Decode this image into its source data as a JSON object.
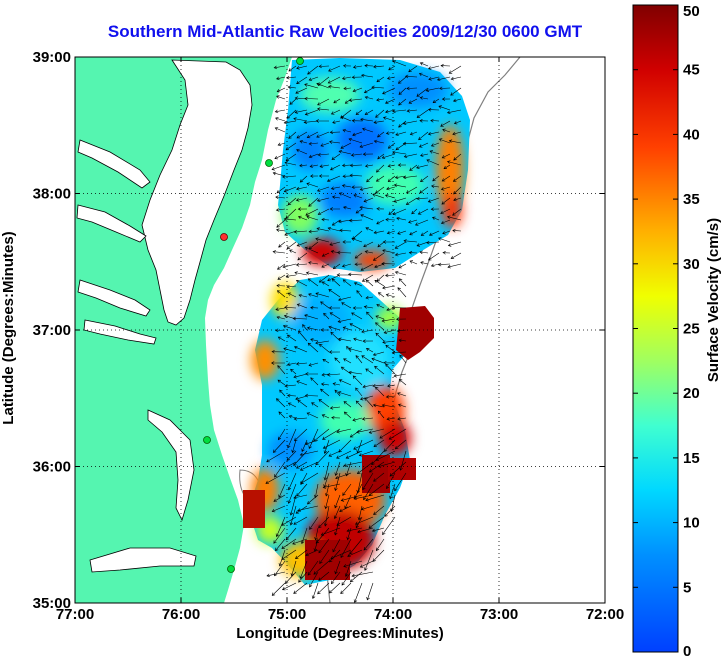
{
  "chart_data": {
    "type": "heatmap",
    "title": "Southern Mid-Atlantic Raw Velocities 2009/12/30 0600 GMT",
    "xlabel": "Longitude (Degrees:Minutes)",
    "ylabel": "Latitude (Degrees:Minutes)",
    "colorbar_label": "Surface Velocity (cm/s)",
    "xlim": [
      -77,
      -72
    ],
    "ylim": [
      35,
      39
    ],
    "clim": [
      0,
      50
    ],
    "x_ticks": [
      {
        "value": -77,
        "label": "77:00"
      },
      {
        "value": -76,
        "label": "76:00"
      },
      {
        "value": -75,
        "label": "75:00"
      },
      {
        "value": -74,
        "label": "74:00"
      },
      {
        "value": -73,
        "label": "73:00"
      },
      {
        "value": -72,
        "label": "72:00"
      }
    ],
    "y_ticks": [
      {
        "value": 35,
        "label": "35:00"
      },
      {
        "value": 36,
        "label": "36:00"
      },
      {
        "value": 37,
        "label": "37:00"
      },
      {
        "value": 38,
        "label": "38:00"
      },
      {
        "value": 39,
        "label": "39:00"
      }
    ],
    "colorbar_ticks": [
      0,
      5,
      10,
      15,
      20,
      25,
      30,
      35,
      40,
      45,
      50
    ],
    "grid": "dotted",
    "regions": [
      {
        "lon": -74.8,
        "lat": 38.7,
        "speed": 10
      },
      {
        "lon": -74.3,
        "lat": 38.4,
        "speed": 7
      },
      {
        "lon": -73.4,
        "lat": 38.2,
        "speed": 35
      },
      {
        "lon": -74.7,
        "lat": 37.6,
        "speed": 45
      },
      {
        "lon": -73.7,
        "lat": 36.95,
        "speed": 50
      },
      {
        "lon": -75.2,
        "lat": 36.9,
        "speed": 28
      },
      {
        "lon": -74.3,
        "lat": 36.7,
        "speed": 15
      },
      {
        "lon": -74.4,
        "lat": 36.2,
        "speed": 42
      },
      {
        "lon": -74.8,
        "lat": 36.05,
        "speed": 10
      },
      {
        "lon": -74.5,
        "lat": 35.45,
        "speed": 48
      },
      {
        "lon": -75.4,
        "lat": 35.6,
        "speed": 40
      }
    ]
  },
  "colors": {
    "land": "#55f5b0",
    "title": "#1010ee",
    "colormap": [
      "#0000bf",
      "#0040ff",
      "#00bfff",
      "#40ffbf",
      "#bfff40",
      "#ffbf00",
      "#ff4000",
      "#bf0000",
      "#800000"
    ]
  }
}
